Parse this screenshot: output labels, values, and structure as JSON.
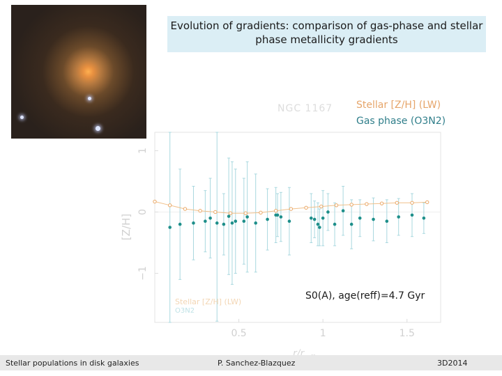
{
  "title": "Evolution of gradients: comparison of gas-phase and stellar phase metallicity gradients",
  "galaxy_name": "NGC 1167",
  "annotation": "S0(A), age(reff)=4.7 Gyr",
  "footer": {
    "left": "Stellar populations in disk galaxies",
    "center": "P. Sanchez-Blazquez",
    "right": "3D2014"
  },
  "colors": {
    "stellar": "#e6a56a",
    "gas": "#1e8f8a",
    "title_bg": "#dbeef5"
  },
  "chart_data": {
    "type": "scatter",
    "xlabel": "r/r_eff",
    "ylabel": "[Z/H]",
    "xlim": [
      0.0,
      1.7
    ],
    "ylim": [
      -1.8,
      1.3
    ],
    "x_ticks": [
      "0.5",
      "1",
      "1.5"
    ],
    "x_tick_values": [
      0.5,
      1.0,
      1.5
    ],
    "y_ticks": [
      "1",
      "0",
      "−1"
    ],
    "y_tick_values": [
      1,
      0,
      -1
    ],
    "legend_inset": [
      "Stellar [Z/H] (LW)",
      "O3N2"
    ],
    "series": [
      {
        "name": "Stellar [Z/H] (LW)",
        "style": "open-circle-line",
        "x": [
          0.0,
          0.09,
          0.18,
          0.27,
          0.36,
          0.45,
          0.54,
          0.63,
          0.72,
          0.81,
          0.9,
          0.99,
          1.08,
          1.17,
          1.26,
          1.35,
          1.44,
          1.53,
          1.62
        ],
        "y": [
          0.17,
          0.11,
          0.05,
          0.02,
          0.0,
          -0.02,
          -0.02,
          -0.01,
          0.02,
          0.05,
          0.07,
          0.09,
          0.11,
          0.12,
          0.13,
          0.14,
          0.15,
          0.15,
          0.16
        ]
      },
      {
        "name": "O3N2",
        "style": "filled-circle",
        "x": [
          0.09,
          0.15,
          0.23,
          0.3,
          0.33,
          0.37,
          0.41,
          0.44,
          0.46,
          0.48,
          0.53,
          0.55,
          0.6,
          0.67,
          0.72,
          0.73,
          0.75,
          0.8,
          0.93,
          0.95,
          0.97,
          0.98,
          1.0,
          1.03,
          1.07,
          1.12,
          1.17,
          1.22,
          1.3,
          1.38,
          1.45,
          1.53,
          1.6
        ],
        "y": [
          -0.25,
          -0.2,
          -0.18,
          -0.15,
          -0.1,
          -0.18,
          -0.2,
          -0.07,
          -0.18,
          -0.15,
          -0.15,
          -0.08,
          -0.18,
          -0.12,
          -0.05,
          -0.05,
          -0.08,
          -0.15,
          -0.1,
          -0.12,
          -0.2,
          -0.25,
          -0.1,
          0.0,
          -0.2,
          0.02,
          -0.2,
          -0.1,
          -0.12,
          -0.15,
          -0.08,
          -0.05,
          -0.1
        ],
        "err": [
          1.55,
          0.9,
          0.6,
          0.5,
          0.65,
          1.6,
          0.5,
          0.95,
          1.0,
          0.85,
          0.7,
          0.9,
          0.8,
          0.5,
          0.45,
          0.35,
          0.4,
          0.55,
          0.4,
          0.3,
          0.35,
          0.3,
          0.45,
          0.3,
          0.35,
          0.4,
          0.4,
          0.3,
          0.35,
          0.35,
          0.3,
          0.35,
          0.25
        ]
      }
    ]
  }
}
